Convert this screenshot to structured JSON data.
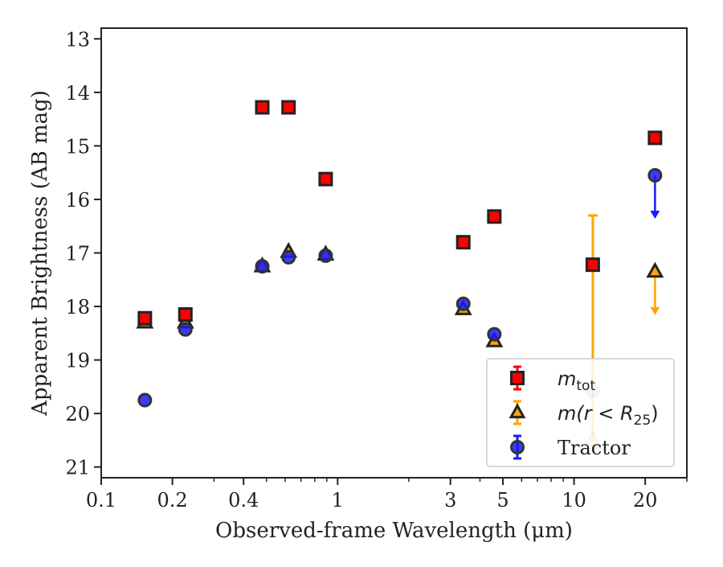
{
  "chart_data": {
    "type": "scatter",
    "xlabel": "Observed-frame Wavelength (μm)",
    "ylabel": "Apparent Brightness (AB mag)",
    "xscale": "log",
    "xlim": [
      0.1,
      30
    ],
    "ylim": [
      21.2,
      12.8
    ],
    "y_inverted": true,
    "x_ticks": [
      0.1,
      0.2,
      0.4,
      1,
      3,
      5,
      10,
      20
    ],
    "x_tick_labels": [
      "0.1",
      "0.2",
      "0.4",
      "1",
      "3",
      "5",
      "10",
      "20"
    ],
    "y_ticks": [
      13,
      14,
      15,
      16,
      17,
      18,
      19,
      20,
      21
    ],
    "y_tick_labels": [
      "13",
      "14",
      "15",
      "16",
      "17",
      "18",
      "19",
      "20",
      "21"
    ],
    "grid": false,
    "legend_position": "lower-right",
    "series": [
      {
        "name": "m_tot",
        "marker": "square",
        "color": "#ff0000",
        "edge_color": "#222222",
        "points": [
          {
            "x": 0.153,
            "y": 18.22
          },
          {
            "x": 0.227,
            "y": 18.15
          },
          {
            "x": 0.48,
            "y": 14.28
          },
          {
            "x": 0.62,
            "y": 14.28
          },
          {
            "x": 0.89,
            "y": 15.62
          },
          {
            "x": 3.4,
            "y": 16.8
          },
          {
            "x": 4.6,
            "y": 16.32
          },
          {
            "x": 12.0,
            "y": 17.22,
            "err": [
              0.92,
              3.5
            ]
          },
          {
            "x": 22.0,
            "y": 14.85
          }
        ]
      },
      {
        "name": "m(r < R25)",
        "marker": "triangle",
        "color": "#ffa500",
        "edge_color": "#222222",
        "points": [
          {
            "x": 0.153,
            "y": 18.3
          },
          {
            "x": 0.227,
            "y": 18.3
          },
          {
            "x": 0.48,
            "y": 17.25
          },
          {
            "x": 0.62,
            "y": 16.98
          },
          {
            "x": 0.89,
            "y": 17.03
          },
          {
            "x": 3.4,
            "y": 18.05
          },
          {
            "x": 4.6,
            "y": 18.65
          },
          {
            "x": 12.0,
            "y": 20.5
          },
          {
            "x": 22.0,
            "y": 17.35,
            "upper_limit": true
          }
        ]
      },
      {
        "name": "Tractor",
        "marker": "circle",
        "color": "#1a1aff",
        "edge_color": "#333333",
        "points": [
          {
            "x": 0.153,
            "y": 19.75
          },
          {
            "x": 0.227,
            "y": 18.43
          },
          {
            "x": 0.48,
            "y": 17.25
          },
          {
            "x": 0.62,
            "y": 17.08
          },
          {
            "x": 0.89,
            "y": 17.05
          },
          {
            "x": 3.4,
            "y": 17.95
          },
          {
            "x": 4.6,
            "y": 18.52
          },
          {
            "x": 12.0,
            "y": 19.58
          },
          {
            "x": 22.0,
            "y": 15.55,
            "upper_limit": true
          }
        ]
      }
    ],
    "legend": {
      "entries": [
        {
          "series": 0,
          "label_main": "m",
          "label_sub": "tot",
          "label_rest": ""
        },
        {
          "series": 1,
          "label_main": "m(r < R",
          "label_sub": "25",
          "label_rest": ")"
        },
        {
          "series": 2,
          "label_main": "Tractor",
          "label_sub": "",
          "label_rest": ""
        }
      ]
    }
  }
}
